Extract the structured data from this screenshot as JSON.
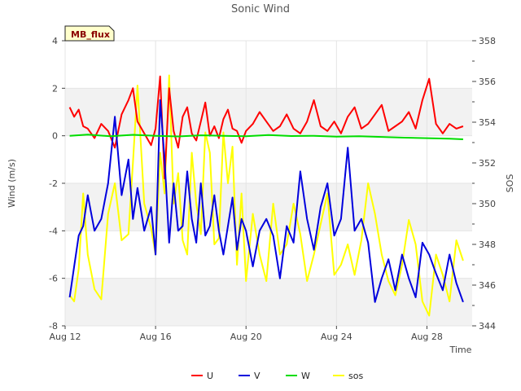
{
  "chart_data": {
    "type": "line",
    "title": "Sonic Wind",
    "badge": "MB_flux",
    "xlabel": "Time",
    "ylabel": "Wind (m/s)",
    "y2label": "SOS",
    "xlim": [
      12,
      30
    ],
    "ylim": [
      -8,
      4
    ],
    "y2lim": [
      344,
      358
    ],
    "x_ticks": [
      {
        "value": 12,
        "label": "Aug 12"
      },
      {
        "value": 16,
        "label": "Aug 16"
      },
      {
        "value": 20,
        "label": "Aug 20"
      },
      {
        "value": 24,
        "label": "Aug 24"
      },
      {
        "value": 28,
        "label": "Aug 28"
      }
    ],
    "y_ticks": [
      {
        "value": -8,
        "label": "-8"
      },
      {
        "value": -6,
        "label": "-6"
      },
      {
        "value": -4,
        "label": "-4"
      },
      {
        "value": -2,
        "label": "-2"
      },
      {
        "value": 0,
        "label": "0"
      },
      {
        "value": 2,
        "label": "2"
      },
      {
        "value": 4,
        "label": "4"
      }
    ],
    "y2_ticks": [
      {
        "value": 344,
        "label": "344"
      },
      {
        "value": 346,
        "label": "346"
      },
      {
        "value": 348,
        "label": "348"
      },
      {
        "value": 350,
        "label": "350"
      },
      {
        "value": 352,
        "label": "352"
      },
      {
        "value": 354,
        "label": "354"
      },
      {
        "value": 356,
        "label": "356"
      },
      {
        "value": 358,
        "label": "358"
      }
    ],
    "bands": [
      [
        -8,
        -6
      ],
      [
        -4,
        -2
      ],
      [
        0,
        2
      ]
    ],
    "series": [
      {
        "name": "U",
        "axis": "left",
        "color": "#ff0000",
        "x": [
          12.2,
          12.4,
          12.6,
          12.8,
          13.0,
          13.3,
          13.6,
          13.9,
          14.2,
          14.5,
          14.8,
          15.0,
          15.2,
          15.5,
          15.8,
          16.0,
          16.2,
          16.4,
          16.6,
          16.8,
          17.0,
          17.2,
          17.4,
          17.6,
          17.8,
          18.0,
          18.2,
          18.4,
          18.6,
          18.8,
          19.0,
          19.2,
          19.4,
          19.6,
          19.8,
          20.0,
          20.3,
          20.6,
          20.9,
          21.2,
          21.5,
          21.8,
          22.1,
          22.4,
          22.7,
          23.0,
          23.3,
          23.6,
          23.9,
          24.2,
          24.5,
          24.8,
          25.1,
          25.4,
          25.7,
          26.0,
          26.3,
          26.6,
          26.9,
          27.2,
          27.5,
          27.8,
          28.1,
          28.4,
          28.7,
          29.0,
          29.3,
          29.6
        ],
        "values": [
          1.2,
          0.8,
          1.1,
          0.4,
          0.3,
          -0.1,
          0.5,
          0.2,
          -0.5,
          0.9,
          1.5,
          2.0,
          0.6,
          0.1,
          -0.4,
          0.3,
          2.5,
          -1.8,
          2.0,
          0.2,
          -0.5,
          0.8,
          1.2,
          0.1,
          -0.2,
          0.6,
          1.4,
          0.0,
          0.4,
          -0.1,
          0.7,
          1.1,
          0.3,
          0.2,
          -0.3,
          0.2,
          0.5,
          1.0,
          0.6,
          0.2,
          0.4,
          0.9,
          0.3,
          0.1,
          0.6,
          1.5,
          0.4,
          0.2,
          0.6,
          0.1,
          0.8,
          1.2,
          0.3,
          0.5,
          0.9,
          1.3,
          0.2,
          0.4,
          0.6,
          1.0,
          0.3,
          1.5,
          2.4,
          0.5,
          0.1,
          0.5,
          0.3,
          0.4
        ]
      },
      {
        "name": "V",
        "axis": "left",
        "color": "#0000dd",
        "x": [
          12.2,
          12.4,
          12.6,
          12.8,
          13.0,
          13.3,
          13.6,
          13.9,
          14.2,
          14.5,
          14.8,
          15.0,
          15.2,
          15.5,
          15.8,
          16.0,
          16.2,
          16.4,
          16.6,
          16.8,
          17.0,
          17.2,
          17.4,
          17.6,
          17.8,
          18.0,
          18.2,
          18.4,
          18.6,
          18.8,
          19.0,
          19.2,
          19.4,
          19.6,
          19.8,
          20.0,
          20.3,
          20.6,
          20.9,
          21.2,
          21.5,
          21.8,
          22.1,
          22.4,
          22.7,
          23.0,
          23.3,
          23.6,
          23.9,
          24.2,
          24.5,
          24.8,
          25.1,
          25.4,
          25.7,
          26.0,
          26.3,
          26.6,
          26.9,
          27.2,
          27.5,
          27.8,
          28.1,
          28.4,
          28.7,
          29.0,
          29.3,
          29.6
        ],
        "values": [
          -6.8,
          -5.5,
          -4.2,
          -3.8,
          -2.5,
          -4.0,
          -3.5,
          -2.0,
          0.8,
          -2.5,
          -1.0,
          -3.5,
          -2.2,
          -4.0,
          -3.0,
          -5.0,
          1.5,
          -1.0,
          -4.5,
          -2.0,
          -4.0,
          -3.8,
          -1.5,
          -3.5,
          -4.5,
          -2.0,
          -4.2,
          -3.8,
          -2.5,
          -4.0,
          -5.0,
          -3.8,
          -2.6,
          -4.8,
          -3.5,
          -4.0,
          -5.5,
          -4.0,
          -3.5,
          -4.2,
          -6.0,
          -3.8,
          -4.5,
          -1.5,
          -3.5,
          -4.8,
          -3.0,
          -2.0,
          -4.2,
          -3.5,
          -0.5,
          -4.0,
          -3.5,
          -4.5,
          -7.0,
          -6.0,
          -5.2,
          -6.5,
          -5.0,
          -6.0,
          -6.8,
          -4.5,
          -5.0,
          -5.8,
          -6.5,
          -5.0,
          -6.2,
          -7.0
        ]
      },
      {
        "name": "W",
        "axis": "left",
        "color": "#00dd00",
        "x": [
          12.2,
          13.0,
          14.0,
          15.0,
          16.0,
          17.0,
          18.0,
          19.0,
          20.0,
          21.0,
          22.0,
          23.0,
          24.0,
          25.0,
          26.0,
          27.0,
          28.0,
          29.0,
          29.6
        ],
        "values": [
          0.0,
          0.05,
          -0.02,
          0.04,
          0.0,
          -0.03,
          0.02,
          0.0,
          -0.02,
          0.03,
          -0.01,
          0.0,
          -0.04,
          -0.02,
          -0.05,
          -0.08,
          -0.1,
          -0.12,
          -0.15
        ]
      },
      {
        "name": "sos",
        "axis": "right",
        "color": "#ffff00",
        "x": [
          12.2,
          12.4,
          12.6,
          12.8,
          13.0,
          13.3,
          13.6,
          13.9,
          14.2,
          14.5,
          14.8,
          15.0,
          15.2,
          15.5,
          15.8,
          16.0,
          16.2,
          16.4,
          16.6,
          16.8,
          17.0,
          17.2,
          17.4,
          17.6,
          17.8,
          18.0,
          18.2,
          18.4,
          18.6,
          18.8,
          19.0,
          19.2,
          19.4,
          19.6,
          19.8,
          20.0,
          20.3,
          20.6,
          20.9,
          21.2,
          21.5,
          21.8,
          22.1,
          22.4,
          22.7,
          23.0,
          23.3,
          23.6,
          23.9,
          24.2,
          24.5,
          24.8,
          25.1,
          25.4,
          25.7,
          26.0,
          26.3,
          26.6,
          26.9,
          27.2,
          27.5,
          27.8,
          28.1,
          28.4,
          28.7,
          29.0,
          29.3,
          29.6
        ],
        "values": [
          345.5,
          345.2,
          346.8,
          350.5,
          347.5,
          345.8,
          345.3,
          349.5,
          351.0,
          348.2,
          348.5,
          352.0,
          355.8,
          350.0,
          348.8,
          347.5,
          352.5,
          350.5,
          356.3,
          350.0,
          351.5,
          348.2,
          347.5,
          352.5,
          350.0,
          348.5,
          353.5,
          352.5,
          348.0,
          348.3,
          353.5,
          351.0,
          352.8,
          347.0,
          350.5,
          346.2,
          349.5,
          347.5,
          346.2,
          350.0,
          347.5,
          348.0,
          350.0,
          348.5,
          346.2,
          347.5,
          349.0,
          350.5,
          346.5,
          347.0,
          348.0,
          346.5,
          348.2,
          351.0,
          349.5,
          347.5,
          346.2,
          345.5,
          347.0,
          349.2,
          348.0,
          345.2,
          344.5,
          347.5,
          346.5,
          345.2,
          348.2,
          347.2
        ]
      }
    ],
    "legend": [
      {
        "label": "U",
        "color": "#ff0000"
      },
      {
        "label": "V",
        "color": "#0000dd"
      },
      {
        "label": "W",
        "color": "#00dd00"
      },
      {
        "label": "sos",
        "color": "#ffff00"
      }
    ]
  }
}
